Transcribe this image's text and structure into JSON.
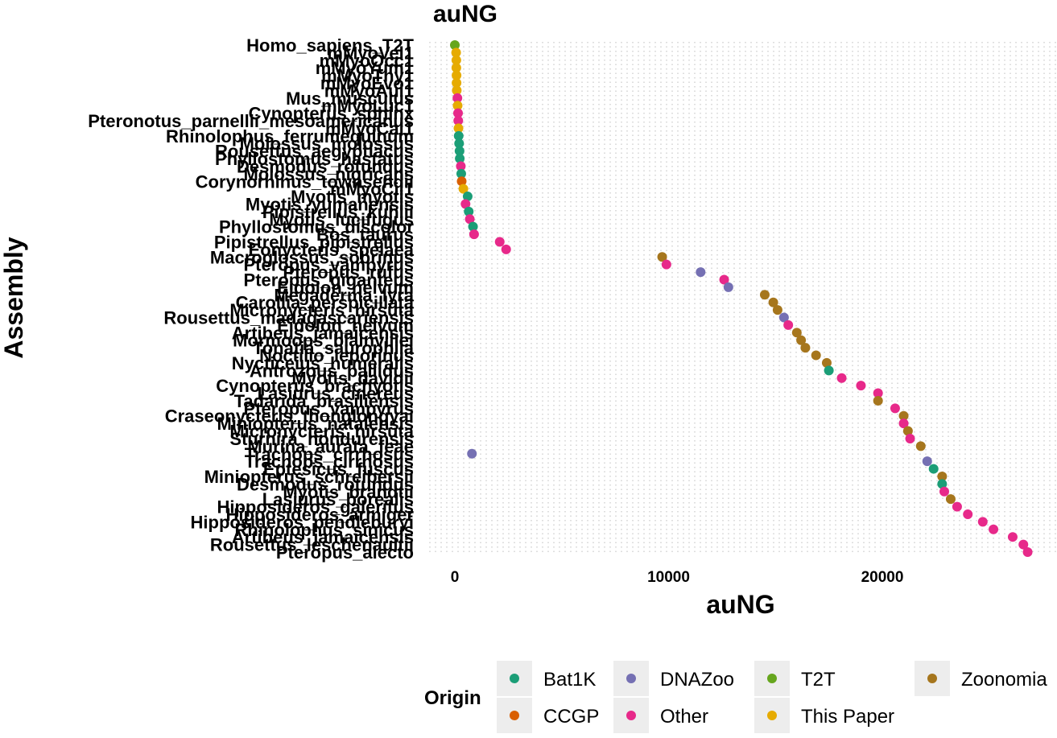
{
  "chart_data": {
    "type": "scatter",
    "title": "auNG",
    "xlabel": "auNG",
    "ylabel": "Assembly",
    "xlim": [
      -1300,
      27600
    ],
    "xticks": [
      0,
      10000,
      20000
    ],
    "xtick_labels": [
      "0",
      "10000",
      "20000"
    ],
    "grid": "dotted vertical",
    "legend": {
      "title": "Origin",
      "position": "bottom",
      "entries": [
        {
          "name": "Bat1K",
          "color": "#1B9E77"
        },
        {
          "name": "DNAZoo",
          "color": "#7570B3"
        },
        {
          "name": "T2T",
          "color": "#66A61E"
        },
        {
          "name": "Zoonomia",
          "color": "#A6761D"
        },
        {
          "name": "CCGP",
          "color": "#D95F02"
        },
        {
          "name": "Other",
          "color": "#E7298A"
        },
        {
          "name": "This Paper",
          "color": "#E6AB02"
        }
      ]
    },
    "points": [
      {
        "assembly": "Homo_sapiens_T2T",
        "x": 0,
        "origin": "T2T"
      },
      {
        "assembly": "mMyoVel1",
        "x": 60,
        "origin": "This Paper"
      },
      {
        "assembly": "mMyoOcc1",
        "x": 70,
        "origin": "This Paper"
      },
      {
        "assembly": "mMyoYum1",
        "x": 70,
        "origin": "This Paper"
      },
      {
        "assembly": "mMyoThy1",
        "x": 80,
        "origin": "This Paper"
      },
      {
        "assembly": "mMyoEvo1",
        "x": 80,
        "origin": "This Paper"
      },
      {
        "assembly": "mMyoAui1",
        "x": 90,
        "origin": "This Paper"
      },
      {
        "assembly": "Mus_musculus",
        "x": 120,
        "origin": "Other"
      },
      {
        "assembly": "mMyoLuc1",
        "x": 130,
        "origin": "This Paper"
      },
      {
        "assembly": "Cynopterus_sphinx",
        "x": 150,
        "origin": "Other"
      },
      {
        "assembly": "Pteronotus_parnellii_mesoamericanus",
        "x": 160,
        "origin": "Other"
      },
      {
        "assembly": "mMyoCai1",
        "x": 170,
        "origin": "This Paper"
      },
      {
        "assembly": "Rhinolophus_ferrumequinum",
        "x": 180,
        "origin": "Bat1K"
      },
      {
        "assembly": "Molossus_molossus",
        "x": 200,
        "origin": "Bat1K"
      },
      {
        "assembly": "Rousettus_aegyptiacus",
        "x": 220,
        "origin": "Bat1K"
      },
      {
        "assembly": "Phyllostomus_hastatus",
        "x": 230,
        "origin": "Bat1K"
      },
      {
        "assembly": "Desmodus_rotundus",
        "x": 280,
        "origin": "Other"
      },
      {
        "assembly": "Molossus_nigricans",
        "x": 300,
        "origin": "Bat1K"
      },
      {
        "assembly": "Corynorhinus_townsendii",
        "x": 320,
        "origin": "CCGP"
      },
      {
        "assembly": "mMyoCil1",
        "x": 400,
        "origin": "This Paper"
      },
      {
        "assembly": "Myotis_myotis",
        "x": 600,
        "origin": "Bat1K"
      },
      {
        "assembly": "Myotis_yumanensis",
        "x": 500,
        "origin": "Other"
      },
      {
        "assembly": "Pipistrellus_kuhlii",
        "x": 650,
        "origin": "Bat1K"
      },
      {
        "assembly": "Myotis_lucifugus",
        "x": 700,
        "origin": "Other"
      },
      {
        "assembly": "Phyllostomus_discolor",
        "x": 850,
        "origin": "Bat1K"
      },
      {
        "assembly": "Bos_taurus",
        "x": 900,
        "origin": "Other"
      },
      {
        "assembly": "Pipistrellus_pipistrellus",
        "x": 2100,
        "origin": "Other"
      },
      {
        "assembly": "Eonycteris_spelaea",
        "x": 2400,
        "origin": "Other"
      },
      {
        "assembly": "Macroglossus_sobrinus",
        "x": 9700,
        "origin": "Zoonomia"
      },
      {
        "assembly": "Pteropus_vampyrus",
        "x": 9900,
        "origin": "Other"
      },
      {
        "assembly": "Pteropus_rufus",
        "x": 11500,
        "origin": "DNAZoo"
      },
      {
        "assembly": "Pteropus_giganteus",
        "x": 12600,
        "origin": "Other"
      },
      {
        "assembly": "Eidolon_helvum",
        "x": 12800,
        "origin": "DNAZoo"
      },
      {
        "assembly": "Megaderma_lyra",
        "x": 14500,
        "origin": "Zoonomia"
      },
      {
        "assembly": "Carollia_perspicillata",
        "x": 14900,
        "origin": "Zoonomia"
      },
      {
        "assembly": "Micronycteris_hirsuta",
        "x": 15100,
        "origin": "Zoonomia"
      },
      {
        "assembly": "Rousettus_madagascariensis",
        "x": 15400,
        "origin": "DNAZoo"
      },
      {
        "assembly": "Eidolon_helvum",
        "x": 15600,
        "origin": "Other"
      },
      {
        "assembly": "Artibeus_jamaicensis",
        "x": 16000,
        "origin": "Zoonomia"
      },
      {
        "assembly": "Mormoops_blainvillei",
        "x": 16200,
        "origin": "Zoonomia"
      },
      {
        "assembly": "Tonatia_saurophila",
        "x": 16400,
        "origin": "Zoonomia"
      },
      {
        "assembly": "Noctilio_leporinus",
        "x": 16900,
        "origin": "Zoonomia"
      },
      {
        "assembly": "Nycticeius_humeralis",
        "x": 17400,
        "origin": "Zoonomia"
      },
      {
        "assembly": "Antrozous_pallidus",
        "x": 17500,
        "origin": "Bat1K"
      },
      {
        "assembly": "Myotis_davidii",
        "x": 18100,
        "origin": "Other"
      },
      {
        "assembly": "Cynopterus_brachyotis",
        "x": 19000,
        "origin": "Other"
      },
      {
        "assembly": "Lasiurus_cinereus",
        "x": 19800,
        "origin": "Other"
      },
      {
        "assembly": "Tadarida_brasiliensis",
        "x": 19800,
        "origin": "Zoonomia"
      },
      {
        "assembly": "Pteropus_vampyrus",
        "x": 20600,
        "origin": "Other"
      },
      {
        "assembly": "Craseonycteris_thonglongyai",
        "x": 21000,
        "origin": "Zoonomia"
      },
      {
        "assembly": "Miniopterus_natalensis",
        "x": 21000,
        "origin": "Other"
      },
      {
        "assembly": "Micronycteris_hirsuta",
        "x": 21200,
        "origin": "Zoonomia"
      },
      {
        "assembly": "Sturnira_hondurensis",
        "x": 21300,
        "origin": "Other"
      },
      {
        "assembly": "Murina_aurata_feae",
        "x": 21800,
        "origin": "Zoonomia"
      },
      {
        "assembly": "Trachops_cirrhosus",
        "x": 800,
        "origin": "DNAZoo"
      },
      {
        "assembly": "Trachops_cirrhosus",
        "x": 22100,
        "origin": "DNAZoo"
      },
      {
        "assembly": "Eptesicus_fuscus",
        "x": 22400,
        "origin": "Bat1K"
      },
      {
        "assembly": "Miniopterus_schreibersii",
        "x": 22800,
        "origin": "Zoonomia"
      },
      {
        "assembly": "Desmodus_rotundus",
        "x": 22800,
        "origin": "Bat1K"
      },
      {
        "assembly": "Myotis_brandtii",
        "x": 22900,
        "origin": "Other"
      },
      {
        "assembly": "Lasiurus_borealis",
        "x": 23200,
        "origin": "Zoonomia"
      },
      {
        "assembly": "Hipposideros_galeritus",
        "x": 23500,
        "origin": "Other"
      },
      {
        "assembly": "Hipposideros_armiger",
        "x": 24000,
        "origin": "Other"
      },
      {
        "assembly": "Hipposideros_pendleburyi",
        "x": 24700,
        "origin": "Other"
      },
      {
        "assembly": "Rhinolophus_sinicus",
        "x": 25200,
        "origin": "Other"
      },
      {
        "assembly": "Artibeus_jamaicensis",
        "x": 26100,
        "origin": "Other"
      },
      {
        "assembly": "Rousettus_leschenaultii",
        "x": 26600,
        "origin": "Other"
      },
      {
        "assembly": "Pteropus_alecto",
        "x": 26800,
        "origin": "Other"
      }
    ]
  }
}
